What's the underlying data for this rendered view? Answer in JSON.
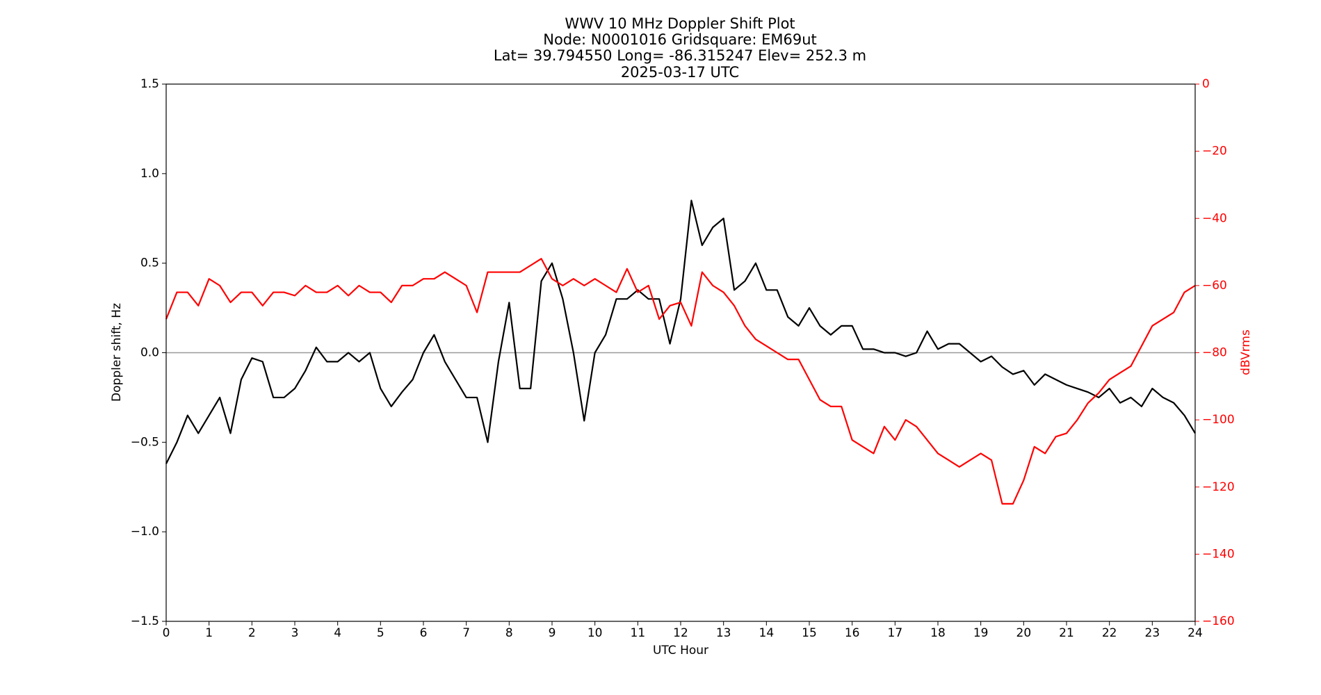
{
  "chart_data": {
    "type": "line",
    "title": [
      "WWV 10 MHz Doppler Shift Plot",
      "Node:  N0001016     Gridsquare:  EM69ut",
      "Lat= 39.794550    Long= -86.315247    Elev= 252.3 m",
      "2025-03-17  UTC"
    ],
    "x_label": "UTC Hour",
    "y_label": "Doppler shift, Hz",
    "y2_label": "dBVrms",
    "xlim": [
      0,
      24
    ],
    "xticks": [
      0,
      1,
      2,
      3,
      4,
      5,
      6,
      7,
      8,
      9,
      10,
      11,
      12,
      13,
      14,
      15,
      16,
      17,
      18,
      19,
      20,
      21,
      22,
      23,
      24
    ],
    "ylim": [
      -1.5,
      1.5
    ],
    "yticks": [
      {
        "value": -1.5,
        "label": "−1.5"
      },
      {
        "value": -1.0,
        "label": "−1.0"
      },
      {
        "value": -0.5,
        "label": "−0.5"
      },
      {
        "value": 0,
        "label": "0.0"
      },
      0.5,
      {
        "value": 1.0,
        "label": "1.0"
      },
      1.5
    ],
    "y2lim": [
      -160,
      0
    ],
    "y2ticks": [
      {
        "value": -160,
        "label": "−160"
      },
      {
        "value": -140,
        "label": "−140"
      },
      {
        "value": -120,
        "label": "−120"
      },
      {
        "value": -100,
        "label": "−100"
      },
      {
        "value": -80,
        "label": "−80"
      },
      {
        "value": -60,
        "label": "−60"
      },
      {
        "value": -40,
        "label": "−40"
      },
      {
        "value": -20,
        "label": "−20"
      },
      0
    ],
    "y2_color": "#ff0000",
    "reference_line": 0,
    "x": [
      0,
      0.25,
      0.5,
      0.75,
      1,
      1.25,
      1.5,
      1.75,
      2,
      2.25,
      2.5,
      2.75,
      3,
      3.25,
      3.5,
      3.75,
      4,
      4.25,
      4.5,
      4.75,
      5,
      5.25,
      5.5,
      5.75,
      6,
      6.25,
      6.5,
      6.75,
      7,
      7.25,
      7.5,
      7.75,
      8,
      8.25,
      8.5,
      8.75,
      9,
      9.25,
      9.5,
      9.75,
      10,
      10.25,
      10.5,
      10.75,
      11,
      11.25,
      11.5,
      11.75,
      12,
      12.25,
      12.5,
      12.75,
      13,
      13.25,
      13.5,
      13.75,
      14,
      14.25,
      14.5,
      14.75,
      15,
      15.25,
      15.5,
      15.75,
      16,
      16.25,
      16.5,
      16.75,
      17,
      17.25,
      17.5,
      17.75,
      18,
      18.25,
      18.5,
      18.75,
      19,
      19.25,
      19.5,
      19.75,
      20,
      20.25,
      20.5,
      20.75,
      21,
      21.25,
      21.5,
      21.75,
      22,
      22.25,
      22.5,
      22.75,
      23,
      23.25,
      23.5,
      23.75,
      24
    ],
    "series": [
      {
        "color": "#000000",
        "axis": "y",
        "values": [
          -0.62,
          -0.5,
          -0.35,
          -0.45,
          -0.35,
          -0.25,
          -0.45,
          -0.15,
          -0.03,
          -0.05,
          -0.25,
          -0.25,
          -0.2,
          -0.1,
          0.03,
          -0.05,
          -0.05,
          0,
          -0.05,
          0,
          -0.2,
          -0.3,
          -0.22,
          -0.15,
          0,
          0.1,
          -0.05,
          -0.15,
          -0.25,
          -0.25,
          -0.5,
          -0.05,
          0.28,
          -0.2,
          -0.2,
          0.4,
          0.5,
          0.3,
          0,
          -0.38,
          0,
          0.1,
          0.3,
          0.3,
          0.35,
          0.3,
          0.3,
          0.05,
          0.3,
          0.85,
          0.6,
          0.7,
          0.75,
          0.35,
          0.4,
          0.5,
          0.35,
          0.35,
          0.2,
          0.15,
          0.25,
          0.15,
          0.1,
          0.15,
          0.15,
          0.02,
          0.02,
          0,
          0,
          -0.02,
          0,
          0.12,
          0.02,
          0.05,
          0.05,
          0,
          -0.05,
          -0.02,
          -0.08,
          -0.12,
          -0.1,
          -0.18,
          -0.12,
          -0.15,
          -0.18,
          -0.2,
          -0.22,
          -0.25,
          -0.2,
          -0.28,
          -0.25,
          -0.3,
          -0.2,
          -0.25,
          -0.28,
          -0.35,
          -0.45
        ]
      },
      {
        "color": "#ff0000",
        "axis": "y2",
        "values": [
          -70,
          -62,
          -62,
          -66,
          -58,
          -60,
          -65,
          -62,
          -62,
          -66,
          -62,
          -62,
          -63,
          -60,
          -62,
          -62,
          -60,
          -63,
          -60,
          -62,
          -62,
          -65,
          -60,
          -60,
          -58,
          -58,
          -56,
          -58,
          -60,
          -68,
          -56,
          -56,
          -56,
          -56,
          -54,
          -52,
          -58,
          -60,
          -58,
          -60,
          -58,
          -60,
          -62,
          -55,
          -62,
          -60,
          -70,
          -66,
          -65,
          -72,
          -56,
          -60,
          -62,
          -66,
          -72,
          -76,
          -78,
          -80,
          -82,
          -82,
          -88,
          -94,
          -96,
          -96,
          -106,
          -108,
          -110,
          -102,
          -106,
          -100,
          -102,
          -106,
          -110,
          -112,
          -114,
          -112,
          -110,
          -112,
          -125,
          -125,
          -118,
          -108,
          -110,
          -105,
          -104,
          -100,
          -95,
          -92,
          -88,
          -86,
          -84,
          -78,
          -72,
          -70,
          -68,
          -62,
          -60
        ]
      }
    ]
  }
}
